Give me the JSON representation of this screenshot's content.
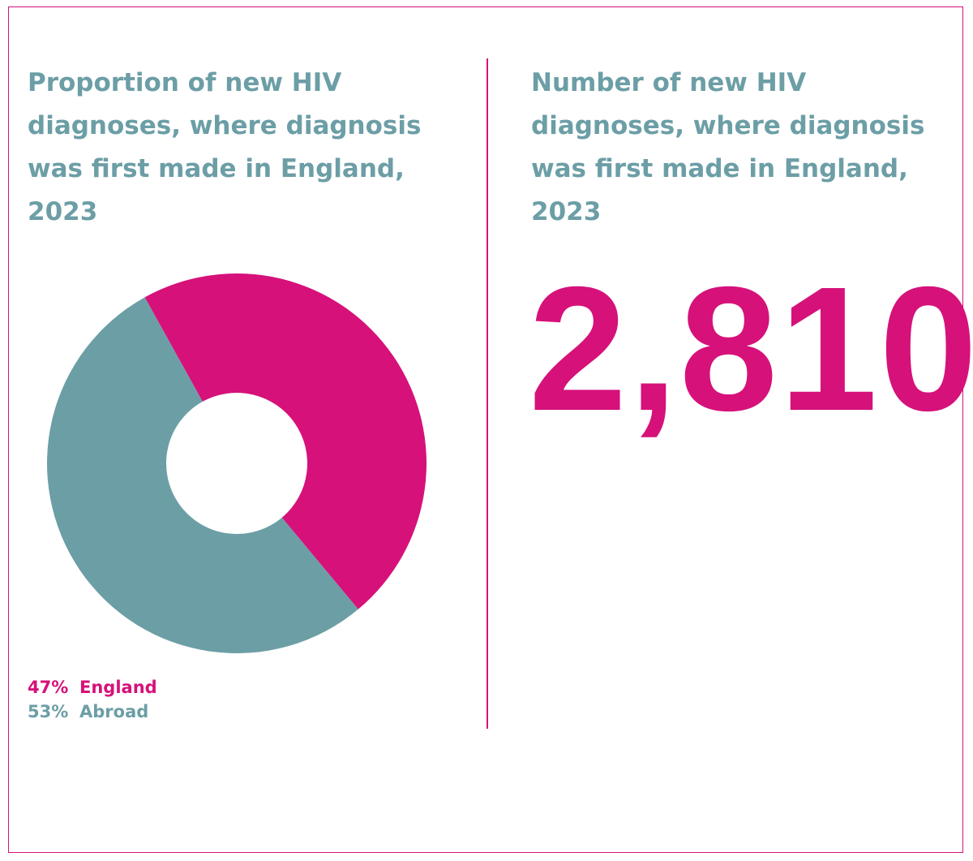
{
  "colors": {
    "accent": "#d6117a",
    "secondary": "#6c9ea6",
    "border": "#d6117a"
  },
  "left_panel": {
    "title_lines": [
      "Proportion of new HIV",
      "diagnoses, where diagnosis",
      "was first made in England,",
      "2023"
    ]
  },
  "right_panel": {
    "title_lines": [
      "Number of new HIV",
      "diagnoses, where diagnosis",
      "was first made in England,",
      "2023"
    ],
    "big_number": "2,810"
  },
  "chart_data": {
    "type": "pie",
    "donut": true,
    "title": "Proportion of new HIV diagnoses, where diagnosis was first made in England, 2023",
    "legend_position": "bottom-left",
    "slices": [
      {
        "label": "England",
        "value": 47,
        "display": "47%",
        "color": "#d6117a"
      },
      {
        "label": "Abroad",
        "value": 53,
        "display": "53%",
        "color": "#6c9ea6"
      }
    ]
  }
}
